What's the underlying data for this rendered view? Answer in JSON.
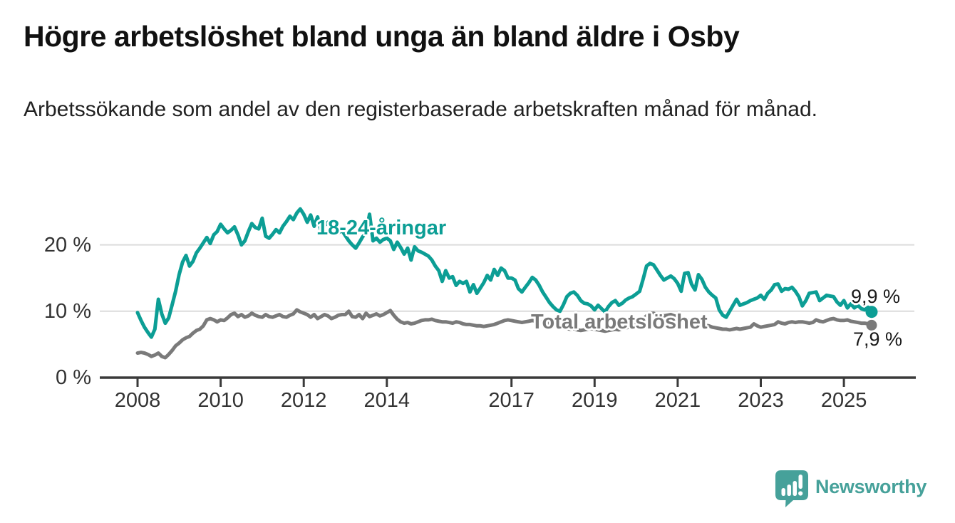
{
  "header": {
    "title": "Högre arbetslöshet bland unga än bland äldre i Osby",
    "subtitle": "Arbetssökande som andel av den registerbaserade arbetskraften månad för månad."
  },
  "chart_data": {
    "type": "line",
    "title": "Högre arbetslöshet bland unga än bland äldre i Osby",
    "xlabel": "",
    "ylabel": "Arbetssökande som andel av den registerbaserade arbetskraften",
    "unit": "%",
    "x_start": "2008-01",
    "x_end": "2025-09",
    "points_per_year": 12,
    "ylim": [
      0,
      26.5
    ],
    "grid": "horizontal",
    "legend_position": "inline-labels",
    "yticks": [
      {
        "value": 0,
        "label": "0 %"
      },
      {
        "value": 10,
        "label": "10 %"
      },
      {
        "value": 20,
        "label": "20 %"
      }
    ],
    "xticks": [
      {
        "year": 2008,
        "label": "2008"
      },
      {
        "year": 2010,
        "label": "2010"
      },
      {
        "year": 2012,
        "label": "2012"
      },
      {
        "year": 2014,
        "label": "2014"
      },
      {
        "year": 2017,
        "label": "2017"
      },
      {
        "year": 2019,
        "label": "2019"
      },
      {
        "year": 2021,
        "label": "2021"
      },
      {
        "year": 2023,
        "label": "2023"
      },
      {
        "year": 2025,
        "label": "2025"
      }
    ],
    "series": [
      {
        "name": "18-24-åringar",
        "color": "#0C9E95",
        "end_value": 9.9,
        "end_label": "9,9 %",
        "values": [
          9.8,
          8.6,
          7.6,
          6.8,
          6.1,
          7.3,
          11.8,
          9.6,
          8.2,
          9.0,
          11.0,
          13.0,
          15.5,
          17.4,
          18.4,
          16.8,
          17.5,
          18.8,
          19.5,
          20.3,
          21.1,
          20.2,
          21.5,
          22.0,
          23.1,
          22.4,
          21.8,
          22.2,
          22.7,
          21.5,
          20.0,
          20.6,
          22.0,
          23.2,
          22.6,
          22.4,
          24.0,
          21.3,
          21.0,
          21.6,
          22.3,
          21.8,
          22.8,
          23.5,
          24.3,
          23.8,
          24.8,
          25.4,
          24.6,
          23.4,
          24.5,
          22.8,
          24.2,
          22.0,
          22.9,
          23.4,
          22.4,
          23.0,
          21.8,
          22.2,
          21.4,
          20.6,
          20.0,
          19.5,
          20.3,
          21.2,
          21.8,
          24.6,
          20.6,
          21.0,
          20.4,
          20.8,
          21.0,
          20.6,
          19.3,
          20.4,
          19.6,
          18.6,
          19.5,
          17.7,
          19.7,
          19.1,
          18.9,
          18.6,
          18.3,
          17.7,
          16.8,
          16.1,
          14.5,
          16.1,
          15.0,
          15.2,
          13.9,
          14.5,
          14.2,
          14.5,
          12.9,
          14.0,
          12.7,
          13.5,
          14.3,
          15.4,
          14.7,
          16.3,
          15.4,
          16.5,
          16.1,
          15.0,
          15.0,
          14.7,
          13.4,
          12.9,
          13.6,
          14.3,
          15.1,
          14.7,
          13.9,
          12.9,
          12.1,
          11.3,
          10.7,
          10.2,
          10.0,
          11.0,
          12.2,
          12.7,
          12.9,
          12.4,
          11.6,
          11.2,
          11.1,
          10.8,
          10.2,
          10.9,
          10.4,
          9.9,
          10.7,
          11.3,
          11.6,
          10.9,
          11.2,
          11.7,
          12.0,
          12.2,
          12.6,
          13.0,
          14.8,
          16.8,
          17.2,
          17.0,
          16.2,
          15.4,
          14.7,
          15.0,
          15.3,
          14.9,
          14.2,
          13.0,
          15.7,
          15.8,
          14.1,
          13.2,
          15.5,
          14.8,
          13.6,
          12.9,
          12.4,
          12.0,
          10.2,
          9.4,
          9.1,
          10.0,
          10.9,
          11.8,
          10.9,
          11.1,
          11.3,
          11.6,
          11.8,
          12.0,
          12.4,
          11.8,
          12.7,
          13.2,
          14.0,
          14.1,
          13.0,
          13.4,
          13.3,
          13.6,
          13.0,
          12.2,
          10.8,
          11.6,
          12.7,
          12.8,
          12.9,
          11.6,
          12.0,
          12.4,
          12.3,
          12.2,
          11.4,
          10.9,
          11.6,
          10.5,
          11.1,
          10.5,
          10.9,
          10.4,
          10.2,
          10.6,
          9.9
        ]
      },
      {
        "name": "Total arbetslöshet",
        "color": "#7A7A7A",
        "end_value": 7.9,
        "end_label": "7,9 %",
        "values": [
          3.7,
          3.8,
          3.7,
          3.5,
          3.2,
          3.4,
          3.7,
          3.2,
          3.0,
          3.5,
          4.1,
          4.8,
          5.2,
          5.7,
          6.0,
          6.2,
          6.7,
          7.1,
          7.3,
          7.8,
          8.7,
          8.9,
          8.7,
          8.4,
          8.7,
          8.6,
          9.0,
          9.5,
          9.7,
          9.2,
          9.5,
          9.1,
          9.3,
          9.7,
          9.4,
          9.2,
          9.1,
          9.5,
          9.2,
          9.1,
          9.3,
          9.5,
          9.2,
          9.1,
          9.4,
          9.6,
          10.2,
          9.9,
          9.7,
          9.5,
          9.1,
          9.5,
          8.9,
          9.2,
          9.5,
          9.3,
          8.9,
          9.1,
          9.4,
          9.5,
          9.5,
          10.0,
          9.2,
          9.1,
          9.5,
          8.9,
          9.7,
          9.2,
          9.4,
          9.6,
          9.3,
          9.5,
          9.8,
          10.1,
          9.4,
          8.8,
          8.4,
          8.2,
          8.3,
          8.1,
          8.2,
          8.4,
          8.6,
          8.7,
          8.7,
          8.8,
          8.6,
          8.5,
          8.4,
          8.4,
          8.3,
          8.2,
          8.4,
          8.3,
          8.1,
          8.0,
          8.0,
          7.9,
          7.8,
          7.8,
          7.7,
          7.8,
          7.9,
          8.0,
          8.2,
          8.4,
          8.6,
          8.7,
          8.6,
          8.5,
          8.4,
          8.3,
          8.4,
          8.5,
          8.6,
          8.5,
          8.4,
          8.3,
          8.2,
          8.1,
          7.9,
          7.8,
          7.6,
          7.5,
          7.4,
          7.3,
          7.4,
          7.2,
          7.1,
          7.2,
          7.3,
          7.4,
          7.3,
          7.2,
          7.1,
          7.0,
          7.1,
          7.2,
          7.3,
          7.2,
          7.4,
          7.5,
          7.6,
          7.8,
          8.0,
          8.3,
          8.8,
          9.3,
          9.6,
          9.7,
          9.5,
          9.4,
          9.3,
          9.4,
          9.5,
          9.3,
          9.2,
          9.0,
          8.9,
          8.7,
          8.6,
          8.4,
          8.3,
          8.1,
          7.9,
          7.8,
          7.6,
          7.5,
          7.4,
          7.3,
          7.3,
          7.2,
          7.3,
          7.4,
          7.3,
          7.4,
          7.5,
          7.6,
          8.1,
          7.8,
          7.6,
          7.7,
          7.8,
          7.9,
          8.0,
          8.4,
          8.2,
          8.1,
          8.3,
          8.4,
          8.3,
          8.4,
          8.4,
          8.3,
          8.2,
          8.3,
          8.7,
          8.5,
          8.4,
          8.6,
          8.8,
          8.9,
          8.7,
          8.6,
          8.6,
          8.7,
          8.5,
          8.4,
          8.3,
          8.2,
          8.2,
          8.1,
          7.9
        ]
      }
    ]
  },
  "footer": {
    "brand": "Newsworthy",
    "brand_color": "#46A19A",
    "logo_icon": "newsworthy-speech-bubble-bar-chart-icon"
  }
}
